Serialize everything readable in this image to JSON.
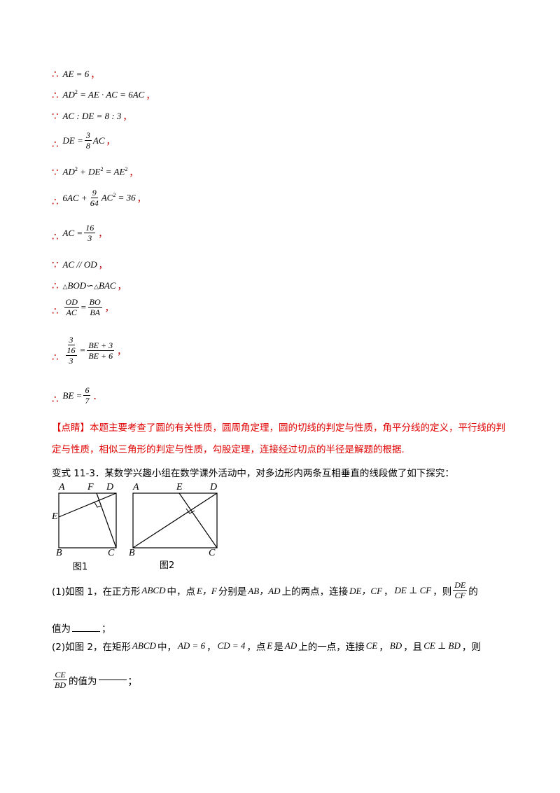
{
  "therefore": "∴",
  "because": "∵",
  "lines": [
    {
      "sym": "therefore",
      "expr": "AE = 6"
    },
    {
      "sym": "therefore",
      "expr": "AD² = AE · AC = 6AC"
    },
    {
      "sym": "because",
      "expr": "AC : DE = 8 : 3"
    },
    {
      "sym": "therefore",
      "expr": "DE = 3/8 AC"
    },
    {
      "sym": "because",
      "expr": "AD² + DE² = AE²"
    },
    {
      "sym": "therefore",
      "expr": "6AC + 9/64 AC² = 36"
    },
    {
      "sym": "therefore",
      "expr": "AC = 16/3"
    },
    {
      "sym": "because",
      "expr": "AC // OD"
    },
    {
      "sym": "therefore",
      "expr": "△BOD∽△BAC"
    },
    {
      "sym": "therefore",
      "expr": "OD/AC = BO/BA"
    },
    {
      "sym": "therefore",
      "expr": "3/(16/3) = (BE+3)/(BE+6)"
    },
    {
      "sym": "therefore",
      "expr": "BE = 6/7"
    }
  ],
  "comment": {
    "tag": "【点睛】",
    "text": "本题主要考查了圆的有关性质，圆周角定理，圆的切线的判定与性质，角平分线的定义，平行线的判定与性质，相似三角形的判定与性质，勾股定理，连接经过切点的半径是解题的根据."
  },
  "problem": {
    "intro": "变式 11-3．某数学兴趣小组在数学课外活动中，对多边形内两条互相垂直的线段做了如下探究：",
    "fig1": {
      "caption": "图1",
      "A": "A",
      "F": "F",
      "D": "D",
      "E": "E",
      "B": "B",
      "C": "C"
    },
    "fig2": {
      "caption": "图2",
      "A": "A",
      "E": "E",
      "D": "D",
      "B": "B",
      "C": "C"
    },
    "q1_a": "(1)如图 1，在正方形",
    "q1_b": "ABCD",
    "q1_c": "中，点",
    "q1_d": "E，F",
    "q1_e": "分别是",
    "q1_f": "AB，AD",
    "q1_g": "上的两点，连接",
    "q1_h": "DE，CF",
    "q1_i": "，",
    "q1_j": "DE ⊥ CF",
    "q1_k": "，则",
    "q1_frac_num": "DE",
    "q1_frac_den": "CF",
    "q1_l": "的",
    "q1_m": "值为",
    "q1_n": "；",
    "q2_a": "(2)如图 2，在矩形",
    "q2_b": "ABCD",
    "q2_c": "中，",
    "q2_d": "AD = 6",
    "q2_e": "，",
    "q2_f": "CD = 4",
    "q2_g": "，点",
    "q2_h": "E",
    "q2_i": "是",
    "q2_j": "AD",
    "q2_k": "上的一点，连接",
    "q2_l": "CE",
    "q2_m": "，",
    "q2_n": "BD",
    "q2_o": "，且",
    "q2_p": "CE ⊥ BD",
    "q2_q": "，则",
    "q2_frac_num": "CE",
    "q2_frac_den": "BD",
    "q2_r": "的值为",
    "q2_s": "；"
  },
  "comma": "，",
  "period": "．"
}
